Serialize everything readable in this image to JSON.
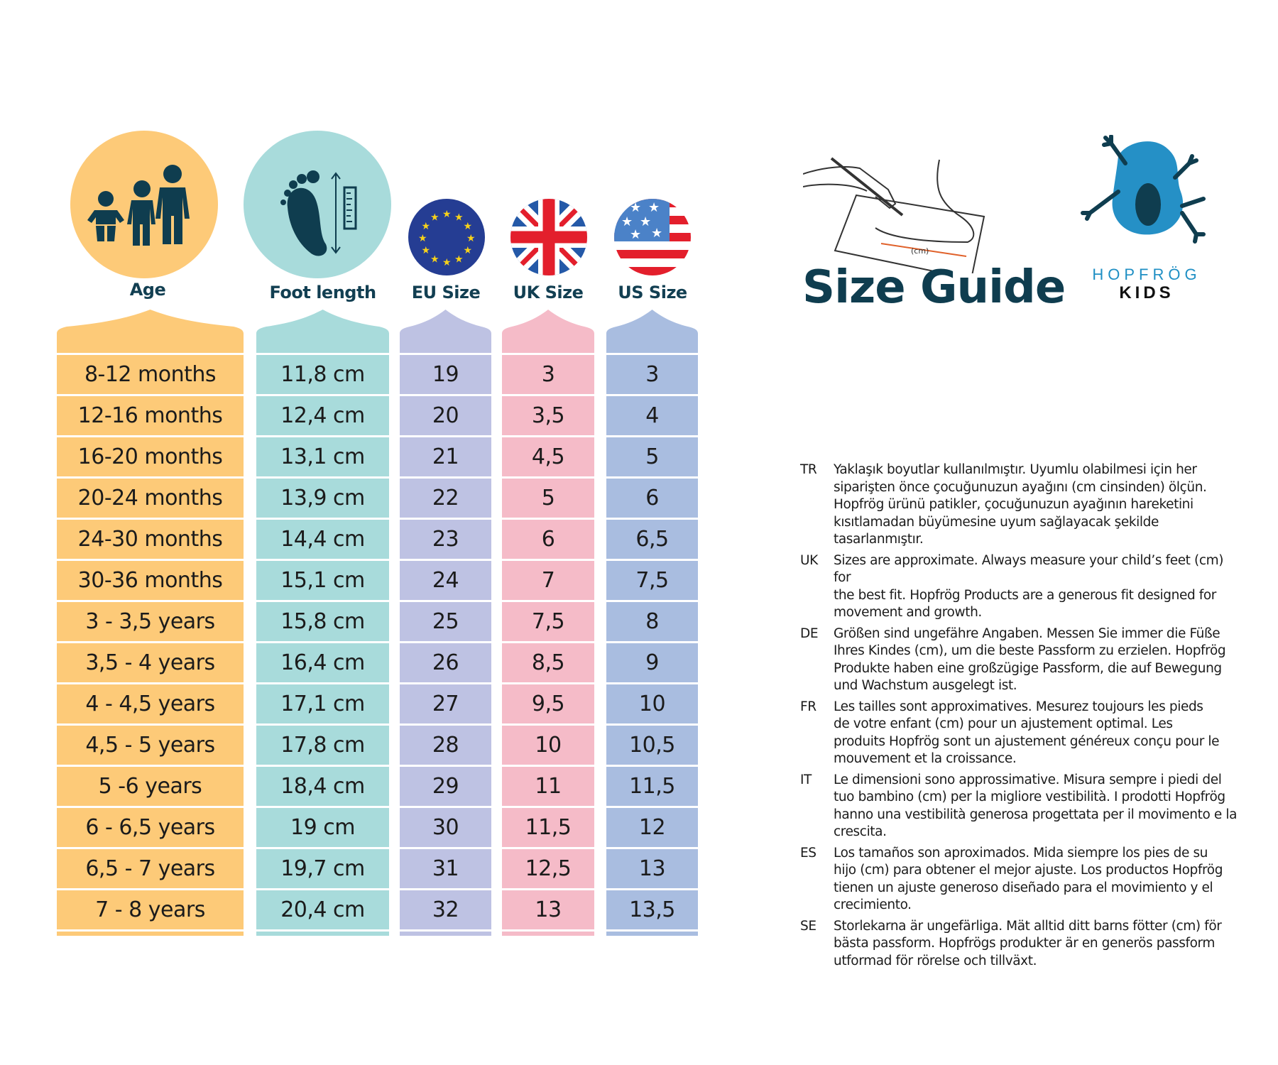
{
  "header": {
    "title": "Size Guide",
    "brand_name": "HOPFRÖG",
    "brand_sub": "KIDS"
  },
  "columns": [
    {
      "key": "age",
      "label": "Age",
      "color": "#fdca78",
      "icon": "children-icon"
    },
    {
      "key": "foot",
      "label": "Foot length",
      "color": "#a8dbdb",
      "icon": "footprint-ruler-icon"
    },
    {
      "key": "eu",
      "label": "EU Size",
      "color": "#bec2e3",
      "icon": "eu-flag-icon"
    },
    {
      "key": "uk",
      "label": "UK Size",
      "color": "#f5bbc8",
      "icon": "uk-flag-icon"
    },
    {
      "key": "us",
      "label": "US Size",
      "color": "#a9bde0",
      "icon": "us-flag-icon"
    }
  ],
  "rows": [
    [
      "8-12 months",
      "11,8 cm",
      "19",
      "3",
      "3"
    ],
    [
      "12-16 months",
      "12,4 cm",
      "20",
      "3,5",
      "4"
    ],
    [
      "16-20 months",
      "13,1 cm",
      "21",
      "4,5",
      "5"
    ],
    [
      "20-24 months",
      "13,9 cm",
      "22",
      "5",
      "6"
    ],
    [
      "24-30 months",
      "14,4 cm",
      "23",
      "6",
      "6,5"
    ],
    [
      "30-36 months",
      "15,1 cm",
      "24",
      "7",
      "7,5"
    ],
    [
      "3 - 3,5 years",
      "15,8 cm",
      "25",
      "7,5",
      "8"
    ],
    [
      "3,5 - 4 years",
      "16,4 cm",
      "26",
      "8,5",
      "9"
    ],
    [
      "4 - 4,5 years",
      "17,1 cm",
      "27",
      "9,5",
      "10"
    ],
    [
      "4,5 - 5 years",
      "17,8 cm",
      "28",
      "10",
      "10,5"
    ],
    [
      "5 -6 years",
      "18,4 cm",
      "29",
      "11",
      "11,5"
    ],
    [
      "6 - 6,5 years",
      "19 cm",
      "30",
      "11,5",
      "12"
    ],
    [
      "6,5 - 7 years",
      "19,7 cm",
      "31",
      "12,5",
      "13"
    ],
    [
      "7 - 8 years",
      "20,4 cm",
      "32",
      "13",
      "13,5"
    ]
  ],
  "illustration": {
    "label": "(cm)"
  },
  "notes": [
    {
      "code": "TR",
      "lines": [
        "Yaklaşık boyutlar kullanılmıştır. Uyumlu olabilmesi için her",
        "siparişten önce çocuğunuzun ayağını (cm cinsinden) ölçün.",
        "Hopfrög ürünü patikler, çocuğunuzun ayağının hareketini",
        "kısıtlamadan büyümesine uyum sağlayacak şekilde tasarlanmıştır."
      ]
    },
    {
      "code": "UK",
      "lines": [
        "Sizes are approximate. Always measure your child’s feet (cm) for",
        "the best fit.  Hopfrög Products are a generous fit designed for",
        "movement and growth."
      ]
    },
    {
      "code": "DE",
      "lines": [
        "Größen sind ungefähre Angaben. Messen Sie immer die Füße",
        "Ihres Kindes (cm), um die beste Passform zu erzielen. Hopfrög",
        "Produkte haben eine großzügige Passform, die auf Bewegung",
        "und Wachstum ausgelegt ist."
      ]
    },
    {
      "code": "FR",
      "lines": [
        "Les tailles sont approximatives. Mesurez toujours les pieds",
        "de votre enfant (cm) pour un ajustement optimal. Les",
        "produits Hopfrög sont un ajustement généreux conçu pour le",
        "mouvement et la croissance."
      ]
    },
    {
      "code": "IT",
      "lines": [
        "Le dimensioni sono approssimative. Misura sempre i piedi del",
        "tuo bambino (cm) per la migliore vestibilità. I prodotti Hopfrög",
        "hanno una vestibilità generosa progettata per il movimento e la",
        "crescita."
      ]
    },
    {
      "code": "ES",
      "lines": [
        "Los tamaños son aproximados. Mida siempre los pies de su",
        "hijo (cm) para obtener el mejor ajuste. Los productos Hopfrög",
        "tienen un ajuste generoso diseñado para el movimiento y el",
        "crecimiento."
      ]
    },
    {
      "code": "SE",
      "lines": [
        "Storlekarna är ungefärliga. Mät alltid ditt barns fötter (cm) för",
        "bästa passform. Hopfrögs produkter är en generös passform",
        "utformad för rörelse och tillväxt."
      ]
    }
  ]
}
